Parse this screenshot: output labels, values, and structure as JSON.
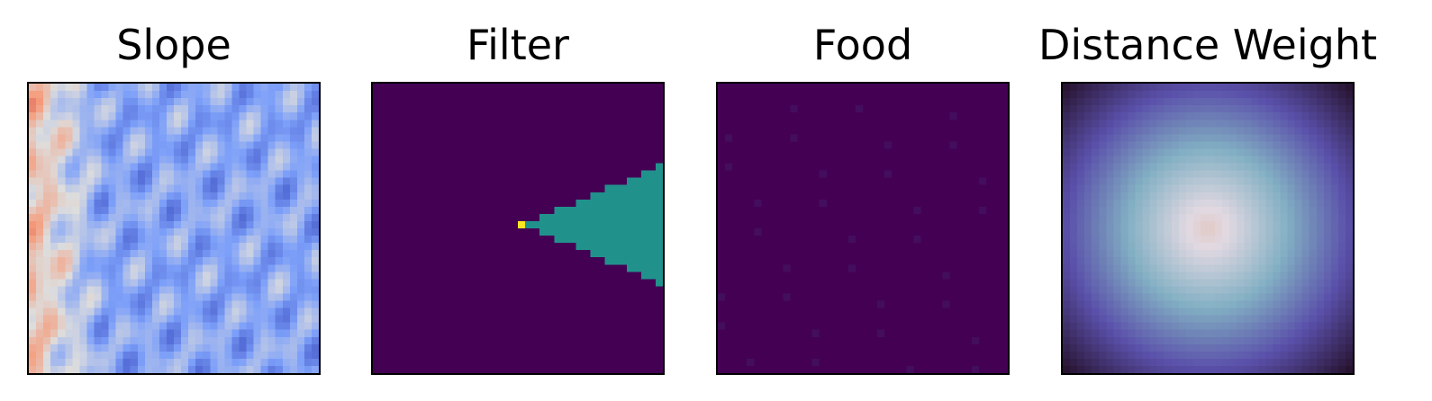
{
  "figure": {
    "panels": [
      {
        "title": "Slope"
      },
      {
        "title": "Filter"
      },
      {
        "title": "Food"
      },
      {
        "title": "Distance Weight"
      }
    ]
  },
  "chart_data": [
    {
      "type": "heatmap",
      "title": "Slope",
      "grid_size": [
        40,
        40
      ],
      "colormap": "coolwarm",
      "value_range": [
        0,
        1
      ],
      "axes": "off",
      "description_values": "terrain-like pattern of mostly low (blue) values with a warmer band on the left edge"
    },
    {
      "type": "heatmap",
      "title": "Filter",
      "grid_size": [
        40,
        40
      ],
      "colormap": "viridis",
      "value_range": [
        0,
        1
      ],
      "axes": "off",
      "background_value": 0,
      "cone": {
        "apex_cell": [
          19,
          20
        ],
        "apex_value": 1,
        "value": 0.5,
        "direction": "right",
        "right_edge_half_height_cells": 8
      }
    },
    {
      "type": "heatmap",
      "title": "Food",
      "grid_size": [
        40,
        40
      ],
      "colormap": "viridis",
      "value_range": [
        0,
        1
      ],
      "axes": "off",
      "background_value": 0,
      "sparse_value": 0.04
    },
    {
      "type": "heatmap",
      "title": "Distance Weight",
      "grid_size": [
        40,
        40
      ],
      "colormap": "twilight",
      "value_range": [
        0,
        1
      ],
      "axes": "off",
      "center_value": 0.5,
      "edge_value": 1
    }
  ]
}
